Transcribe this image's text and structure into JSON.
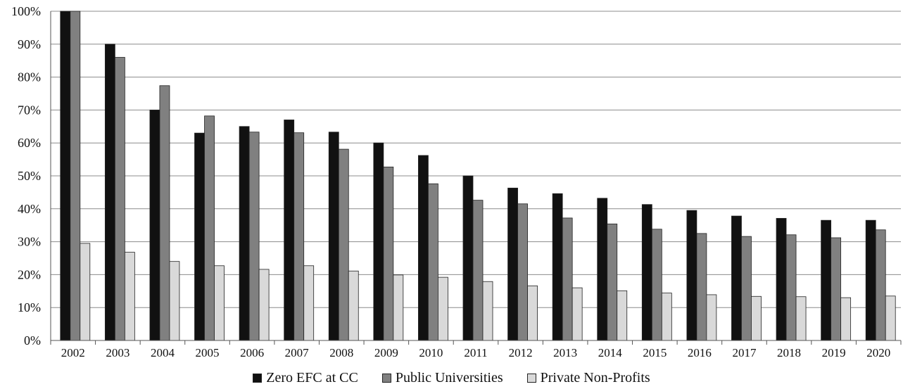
{
  "chart_data": {
    "type": "bar",
    "title": "",
    "xlabel": "",
    "ylabel": "",
    "ylim": [
      0,
      100
    ],
    "y_ticks": [
      "0%",
      "10%",
      "20%",
      "30%",
      "40%",
      "50%",
      "60%",
      "70%",
      "80%",
      "90%",
      "100%"
    ],
    "grid": true,
    "legend_position": "bottom",
    "categories": [
      "2002",
      "2003",
      "2004",
      "2005",
      "2006",
      "2007",
      "2008",
      "2009",
      "2010",
      "2011",
      "2012",
      "2013",
      "2014",
      "2015",
      "2016",
      "2017",
      "2018",
      "2019",
      "2020"
    ],
    "series": [
      {
        "name": "Zero EFC at CC",
        "color": "#111111",
        "values": [
          100,
          90,
          70,
          63,
          65,
          67,
          63.3,
          60,
          56.2,
          50,
          46.3,
          44.6,
          43.2,
          41.3,
          39.5,
          37.8,
          37.1,
          36.5,
          36.5
        ]
      },
      {
        "name": "Public Universities",
        "color": "#808080",
        "values": [
          100,
          86,
          77.4,
          68.2,
          63.3,
          63.1,
          58.1,
          52.7,
          47.6,
          42.6,
          41.5,
          37.2,
          35.4,
          33.8,
          32.5,
          31.6,
          32.1,
          31.2,
          33.6
        ]
      },
      {
        "name": "Private Non-Profits",
        "color": "#d9d9d9",
        "values": [
          29.5,
          26.8,
          24,
          22.7,
          21.6,
          22.7,
          21.1,
          19.9,
          19.2,
          17.9,
          16.6,
          16,
          15.1,
          14.4,
          13.9,
          13.4,
          13.3,
          13,
          13.5
        ]
      }
    ]
  }
}
